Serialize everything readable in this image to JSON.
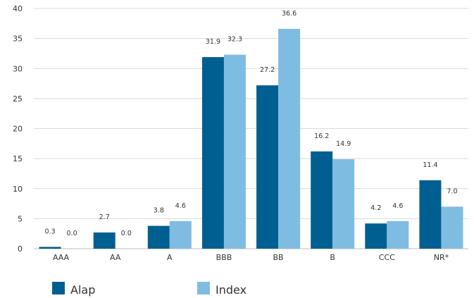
{
  "chart_data": {
    "type": "bar",
    "categories": [
      "AAA",
      "AA",
      "A",
      "BBB",
      "BB",
      "B",
      "CCC",
      "NR*"
    ],
    "series": [
      {
        "name": "Alap",
        "values": [
          0.3,
          2.7,
          3.8,
          31.9,
          27.2,
          16.2,
          4.2,
          11.4
        ],
        "color": "#005f91"
      },
      {
        "name": "Index",
        "values": [
          0.0,
          0.0,
          4.6,
          32.3,
          36.6,
          14.9,
          4.6,
          7.0
        ],
        "color": "#7fbce2"
      }
    ],
    "data_labels": [
      [
        "0.3",
        "2.7",
        "3.8",
        "31.9",
        "27.2",
        "16.2",
        "4.2",
        "11.4"
      ],
      [
        "0.0",
        "0.0",
        "4.6",
        "32.3",
        "36.6",
        "14.9",
        "4.6",
        "7.0"
      ]
    ],
    "y_ticks": [
      "0",
      "5",
      "10",
      "15",
      "20",
      "25",
      "30",
      "35",
      "40"
    ],
    "ylim": [
      0,
      40
    ],
    "grid": true,
    "legend": "bottom-left"
  }
}
